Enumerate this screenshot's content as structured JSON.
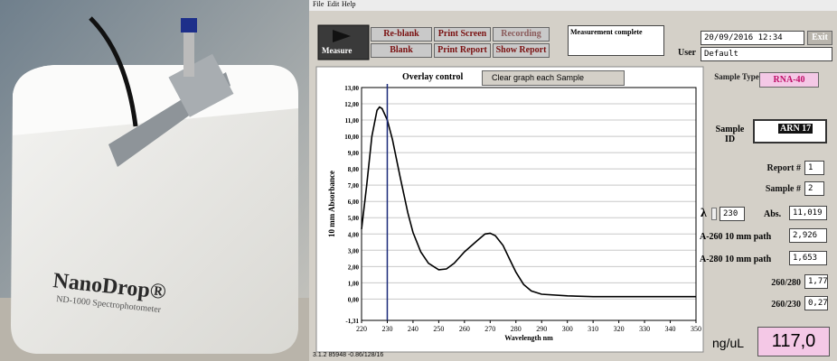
{
  "photo": {
    "brand": "NanoDrop®",
    "model": "ND-1000 Spectrophotometer"
  },
  "menu": [
    "File",
    "Edit",
    "Help"
  ],
  "toolbar": {
    "measure": "Measure",
    "reblank": "Re-blank",
    "blank": "Blank",
    "print_screen": "Print Screen",
    "print_report": "Print Report",
    "recording": "Recording",
    "show_report": "Show Report",
    "status": "Measurement complete",
    "datetime": "20/09/2016 12:34",
    "exit": "Exit",
    "user_label": "User",
    "user": "Default"
  },
  "overlay": {
    "label": "Overlay control",
    "option": "Clear graph each Sample"
  },
  "panel": {
    "sample_type_label": "Sample Type",
    "sample_type": "RNA-40",
    "sample_id_label": "Sample ID",
    "sample_id": "ARN 17",
    "report_label": "Report #",
    "report": "1",
    "sample_label": "Sample #",
    "sample": "2",
    "lambda_label": "λ",
    "lambda": 230,
    "abs_label": "Abs.",
    "abs": "11,019",
    "a260_label": "A-260 10 mm path",
    "a260": "2,926",
    "a280_label": "A-280 10 mm path",
    "a280": "1,653",
    "r260_280_label": "260/280",
    "r260_280": "1,77",
    "r260_230_label": "260/230",
    "r260_230": "0,27",
    "conc_label": "ng/uL",
    "conc": "117,0"
  },
  "footer": "3.1.2 85948 -0.86/128/16",
  "chart_data": {
    "type": "line",
    "y_label": "10 mm Absorbance",
    "x_label": "Wavelength nm",
    "color": "#000000",
    "x": [
      220,
      222,
      224,
      226,
      227,
      228,
      230,
      232,
      235,
      238,
      240,
      243,
      246,
      250,
      253,
      256,
      260,
      265,
      268,
      270,
      272,
      275,
      278,
      280,
      283,
      286,
      290,
      300,
      310,
      320,
      330,
      340,
      350
    ],
    "values": [
      4.3,
      7.0,
      10.0,
      11.6,
      11.8,
      11.7,
      11.0,
      9.8,
      7.5,
      5.3,
      4.1,
      2.9,
      2.2,
      1.8,
      1.85,
      2.2,
      2.9,
      3.6,
      4.0,
      4.05,
      3.9,
      3.3,
      2.3,
      1.65,
      0.9,
      0.5,
      0.3,
      0.2,
      0.15,
      0.15,
      0.15,
      0.15,
      0.15
    ],
    "xlim": [
      220,
      350
    ],
    "xticks": [
      220,
      230,
      240,
      250,
      260,
      270,
      280,
      290,
      300,
      310,
      320,
      330,
      340,
      350
    ],
    "ylim": [
      -1.31,
      13
    ],
    "yticks": [
      {
        "value": -1.31,
        "label": "-1,31"
      },
      {
        "value": 0,
        "label": "0,00"
      },
      {
        "value": 1,
        "label": "1,00"
      },
      {
        "value": 2,
        "label": "2,00"
      },
      {
        "value": 3,
        "label": "3,00"
      },
      {
        "value": 4,
        "label": "4,00"
      },
      {
        "value": 5,
        "label": "5,00"
      },
      {
        "value": 6,
        "label": "6,00"
      },
      {
        "value": 7,
        "label": "7,00"
      },
      {
        "value": 8,
        "label": "8,00"
      },
      {
        "value": 9,
        "label": "9,00"
      },
      {
        "value": 10,
        "label": "10,00"
      },
      {
        "value": 11,
        "label": "11,00"
      },
      {
        "value": 12,
        "label": "12,00"
      },
      {
        "value": 13,
        "label": "13,00"
      }
    ],
    "grid": true
  }
}
